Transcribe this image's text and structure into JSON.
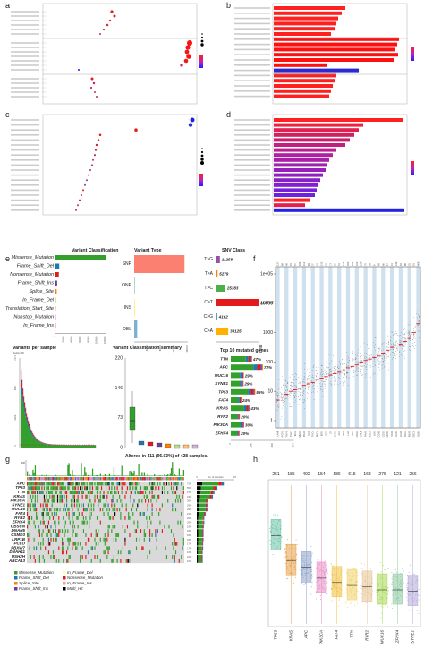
{
  "panels": {
    "a": "a",
    "b": "b",
    "c": "c",
    "d": "d",
    "e": "e",
    "f": "f",
    "g": "g",
    "h": "h"
  },
  "colors": {
    "red": "#e41a1c",
    "blue": "#2233cc",
    "green": "#33a02c",
    "orange": "#ff7f00",
    "salmon": "#fb8072",
    "purple": "#a020f0",
    "lightblue": "#a6cee3"
  },
  "variant_classification": {
    "title": "Variant Classification",
    "labels": [
      "Missense_Mutation",
      "Frame_Shift_Del",
      "Nonsense_Mutation",
      "Frame_Shift_Ins",
      "Splice_Site",
      "In_Frame_Del",
      "Translation_Start_Site",
      "Nonstop_Mutation",
      "In_Frame_Ins"
    ],
    "values": [
      120000,
      9000,
      8000,
      4000,
      3000,
      1500,
      400,
      300,
      200
    ],
    "colors": [
      "#33a02c",
      "#1f78b4",
      "#e31a1c",
      "#6a3d9a",
      "#ff7f00",
      "#b2df8a",
      "#fdbf6f",
      "#cab2d6",
      "#fb9a99"
    ],
    "ticks": [
      "0",
      "20000",
      "40000",
      "60000",
      "80000",
      "100000",
      "120000"
    ]
  },
  "variant_type": {
    "title": "Variant Type",
    "labels": [
      "SNP",
      "ONP",
      "INS",
      "DEL"
    ],
    "values": [
      150000,
      300,
      1500,
      9000
    ],
    "colors": [
      "#fb8072",
      "#8dd3c7",
      "#ffed6f",
      "#80b1d3"
    ],
    "ticks": [
      "0",
      "40000",
      "80000",
      "120000",
      "160000"
    ]
  },
  "snv_class": {
    "title": "SNV Class",
    "labels": [
      "T>G",
      "T>A",
      "T>C",
      "C>T",
      "C>G",
      "C>A"
    ],
    "values": [
      11258,
      5279,
      25383,
      112505,
      4162,
      33125
    ],
    "value_labels": [
      "11258",
      "5279",
      "25383",
      "112505",
      "4162",
      "33125"
    ],
    "colors": [
      "#984ea3",
      "#ff7f00",
      "#4daf4a",
      "#e41a1c",
      "#377eb8",
      "#ffb000"
    ]
  },
  "variants_per_sample": {
    "title": "Variants per sample",
    "subtitle": "Median: 96",
    "yticks": [
      "7271",
      "4847",
      "2423",
      "0"
    ]
  },
  "vc_summary": {
    "title": "Variant Classification summary",
    "yticks": [
      "220",
      "146",
      "73",
      "0"
    ]
  },
  "top10": {
    "title": "Top 10 mutated genes",
    "genes": [
      "TTN",
      "APC",
      "MUC16",
      "SYNE1",
      "TP53",
      "FAT4",
      "KRAS",
      "RYR2",
      "PIK3CA",
      "ZFHX4"
    ],
    "percents": [
      "47%",
      "72%",
      "29%",
      "29%",
      "55%",
      "24%",
      "43%",
      "20%",
      "30%",
      "20%"
    ],
    "values": [
      207,
      310,
      127,
      124,
      236,
      104,
      184,
      88,
      129,
      87
    ],
    "xticks": [
      "0",
      "200",
      "400",
      "607"
    ]
  },
  "tmb": {
    "ylabel": "TMB",
    "yticks": [
      "1e+05",
      "10000",
      "1000",
      "100",
      "10",
      "1"
    ],
    "yvalues": [
      100000,
      10000,
      1000,
      100,
      10,
      1
    ],
    "top_counts": [
      "127",
      "68",
      "48",
      "91",
      "57",
      "163",
      "112",
      "84",
      "37",
      "51",
      "135",
      "58",
      "72",
      "87",
      "41",
      "174",
      "295",
      "118",
      "109",
      "210",
      "79",
      "24",
      "8",
      "45",
      "66",
      "17",
      "31",
      "139",
      "92",
      "88",
      "53",
      "41",
      "468"
    ],
    "cancers": [
      "LAML",
      "PCPG",
      "THYM",
      "TGCT",
      "KICH",
      "MESO",
      "PRAD",
      "UVM",
      "THCA",
      "BRCA",
      "KIRC",
      "KIRP",
      "OV",
      "SARC",
      "ACC",
      "GBM",
      "LGG",
      "UCS",
      "UCEC",
      "CHOL",
      "PAAD",
      "ESCA",
      "LIHC",
      "COAD",
      "CESC",
      "HNSC",
      "STAD",
      "LUSC",
      "LUAD",
      "BLCA",
      "READ",
      "SKCM",
      "DLBC"
    ],
    "medians": [
      0.7,
      0.8,
      0.9,
      1.0,
      1.05,
      1.1,
      1.2,
      1.25,
      1.3,
      1.4,
      1.45,
      1.5,
      1.55,
      1.6,
      1.65,
      1.7,
      1.8,
      1.85,
      1.9,
      2.0,
      2.05,
      2.1,
      2.15,
      2.2,
      2.3,
      2.4,
      2.5,
      2.55,
      2.6,
      2.7,
      2.8,
      3.0,
      3.3
    ]
  },
  "oncoplot": {
    "title": "Altered in 411 (96.03%) of 428 samples.",
    "tmb_max": "988",
    "genes": [
      "APC",
      "TP53",
      "TTN",
      "KRAS",
      "PIK3CA",
      "SYNE1",
      "MUC16",
      "FAT4",
      "RYR2",
      "ZFHX4",
      "OBSCN",
      "DNAH5",
      "CSMD3",
      "LRP1B",
      "PCLO",
      "FBXW7",
      "DNAH11",
      "USH2H",
      "ABCA13"
    ],
    "percents": [
      "72%",
      "55%",
      "47%",
      "43%",
      "30%",
      "29%",
      "29%",
      "24%",
      "20%",
      "20%",
      "19%",
      "18%",
      "18%",
      "18%",
      "17%",
      "17%",
      "16%",
      "16%",
      "16%"
    ],
    "freqs": [
      0.72,
      0.55,
      0.47,
      0.43,
      0.3,
      0.29,
      0.29,
      0.24,
      0.2,
      0.2,
      0.19,
      0.18,
      0.18,
      0.18,
      0.17,
      0.17,
      0.16,
      0.16,
      0.16
    ],
    "axis_label": "No. of samples",
    "axis_ticks": [
      "0",
      "307"
    ],
    "legend": [
      "Missense_Mutation",
      "Frame_Shift_Del",
      "Splice_Site",
      "Frame_Shift_Ins",
      "In_Frame_Del",
      "Nonsense_Mutation",
      "In_Frame_Ins",
      "Multi_Hit"
    ],
    "legend_colors": [
      "#33a02c",
      "#1f78b4",
      "#ff7f00",
      "#6a3d9a",
      "#ffff99",
      "#e31a1c",
      "#fb9a99",
      "#000000"
    ]
  },
  "boxplot_h": {
    "genes": [
      "TP53",
      "KRAS",
      "APC",
      "PIK3CA",
      "FAT4",
      "TTN",
      "RYR2",
      "MUC16",
      "ZFHX4",
      "SYNE1"
    ],
    "counts": [
      "251",
      "185",
      "492",
      "154",
      "186",
      "615",
      "163",
      "276",
      "121",
      "256"
    ],
    "colors": [
      "#66c2a5",
      "#e6a04a",
      "#8da0cb",
      "#e78ac3",
      "#f0c040",
      "#f0d060",
      "#e5c494",
      "#a6d854",
      "#8cc8a0",
      "#b3a8d8"
    ],
    "medians": [
      0.62,
      0.45,
      0.4,
      0.33,
      0.3,
      0.28,
      0.27,
      0.25,
      0.25,
      0.24
    ]
  }
}
